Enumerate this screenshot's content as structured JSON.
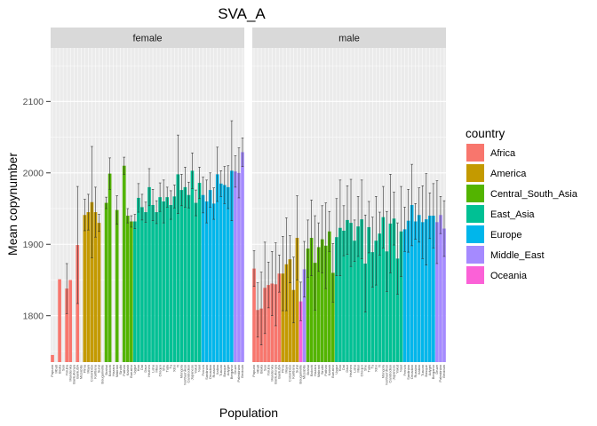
{
  "chart_data": {
    "type": "bar",
    "title": "SVA_A",
    "xlabel": "Population",
    "ylabel": "Mean copynumber",
    "ylim": [
      1735,
      2175
    ],
    "yticks": [
      1800,
      1900,
      2000,
      2100
    ],
    "grid": true,
    "legend_position": "right",
    "legend_title": "country",
    "countries": [
      "Africa",
      "America",
      "Central_South_Asia",
      "East_Asia",
      "Europe",
      "Middle_East",
      "Oceania"
    ],
    "colors": {
      "Africa": "#F8766D",
      "America": "#C49A00",
      "Central_South_Asia": "#53B400",
      "East_Asia": "#00C094",
      "Europe": "#00B6EB",
      "Middle_East": "#A58AFF",
      "Oceania": "#FB61D7"
    },
    "categories": [
      "Papuan",
      "Mbuti",
      "Biaka",
      "San",
      "Yoruba",
      "Mandenka",
      "BantuKenya",
      "BantuSA",
      "Mozabite",
      "Pima",
      "Maya",
      "Colombian",
      "Karitiana",
      "Surui",
      "Bougainville",
      "Brahui",
      "Balochi",
      "Hazara",
      "Makrani",
      "Sindhi",
      "Pathan",
      "Kalash",
      "Burusho",
      "Uygur",
      "Han",
      "Dai",
      "Daur",
      "Hezhen",
      "Lahu",
      "Miao",
      "Oroqen",
      "She",
      "Tujia",
      "Tu",
      "Xibo",
      "Yi",
      "Mongola",
      "NorthernHan",
      "Cambodian",
      "Japanese",
      "Yakut",
      "Naxi",
      "French",
      "Sardinian",
      "Orcadian",
      "Russian",
      "Italian",
      "Tuscan",
      "Basque",
      "Adygei",
      "Bergamo",
      "Druze",
      "Palestinian",
      "Bedouin"
    ],
    "series": [
      {
        "name": "female",
        "values": [
          1745,
          null,
          1851,
          null,
          1838,
          1850,
          null,
          1899,
          null,
          1941,
          1945,
          1959,
          1945,
          1930,
          null,
          1958,
          1999,
          null,
          1948,
          null,
          2010,
          1940,
          1932,
          1932,
          1965,
          1952,
          1945,
          1980,
          1955,
          1945,
          1966,
          1960,
          1966,
          1955,
          1967,
          1998,
          1976,
          1980,
          1969,
          2003,
          1958,
          1986,
          1969,
          1960,
          1976,
          1957,
          1998,
          1985,
          1983,
          1980,
          2003,
          2002,
          2000,
          2029
        ],
        "errors": [
          null,
          null,
          null,
          null,
          35,
          null,
          null,
          82,
          null,
          22,
          25,
          78,
          35,
          12,
          null,
          8,
          22,
          null,
          20,
          null,
          12,
          10,
          8,
          10,
          20,
          18,
          14,
          26,
          22,
          16,
          20,
          30,
          14,
          20,
          16,
          55,
          22,
          28,
          18,
          25,
          18,
          22,
          25,
          30,
          24,
          22,
          38,
          18,
          26,
          30,
          70,
          22,
          35,
          20
        ]
      },
      {
        "name": "male",
        "values": [
          1866,
          1808,
          1810,
          1839,
          1843,
          1845,
          1844,
          1859,
          1865,
          1859,
          1872,
          1879,
          1836,
          1909,
          1820,
          1894,
          1909,
          1874,
          1896,
          1907,
          1898,
          1918,
          1860,
          1910,
          1923,
          1919,
          1934,
          1930,
          1905,
          1925,
          1935,
          1873,
          1924,
          1889,
          1905,
          1915,
          1938,
          1890,
          1929,
          1936,
          1880,
          1918,
          1921,
          1933,
          1955,
          1932,
          1941,
          1931,
          1935,
          1940,
          1940,
          1931,
          1941,
          1922
        ]
      }
    ]
  }
}
